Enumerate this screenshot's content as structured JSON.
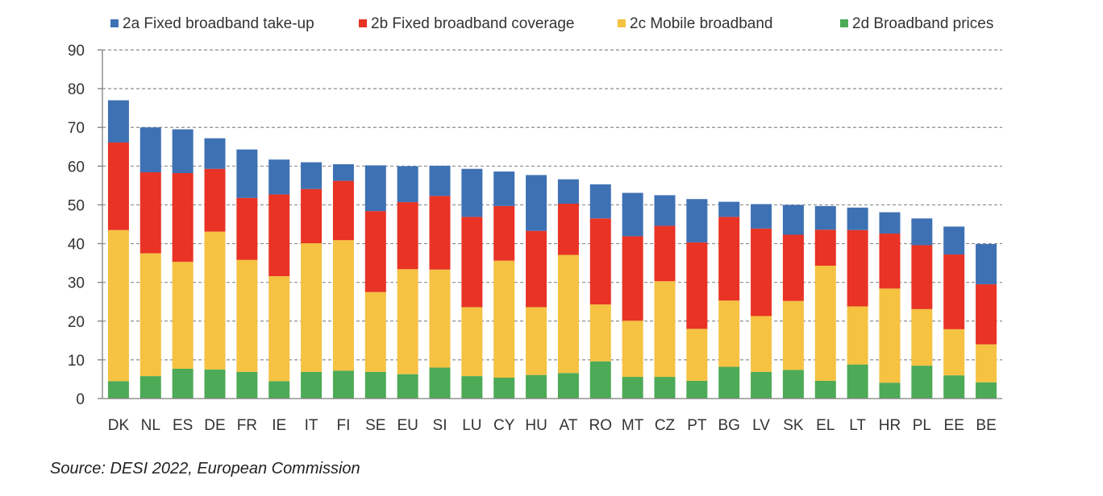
{
  "chart_data": {
    "type": "bar",
    "stacked": true,
    "title": "",
    "xlabel": "",
    "ylabel": "",
    "ylim": [
      0,
      90
    ],
    "yticks": [
      0,
      10,
      20,
      30,
      40,
      50,
      60,
      70,
      80,
      90
    ],
    "grid": true,
    "legend_position": "top",
    "categories": [
      "DK",
      "NL",
      "ES",
      "DE",
      "FR",
      "IE",
      "IT",
      "FI",
      "SE",
      "EU",
      "SI",
      "LU",
      "CY",
      "HU",
      "AT",
      "RO",
      "MT",
      "CZ",
      "PT",
      "BG",
      "LV",
      "SK",
      "EL",
      "LT",
      "HR",
      "PL",
      "EE",
      "BE"
    ],
    "series": [
      {
        "name": "2d Broadband prices",
        "color": "#4daa57",
        "values": [
          4.5,
          5.8,
          7.7,
          7.5,
          6.9,
          4.5,
          6.9,
          7.2,
          6.9,
          6.3,
          8.0,
          5.8,
          5.4,
          6.1,
          6.6,
          9.6,
          5.6,
          5.6,
          4.6,
          8.2,
          6.9,
          7.4,
          4.6,
          8.8,
          4.1,
          8.5,
          6.0,
          4.2
        ]
      },
      {
        "name": "2c Mobile broadband",
        "color": "#f5c242",
        "values": [
          39.0,
          31.7,
          27.6,
          35.6,
          28.9,
          27.1,
          33.2,
          33.7,
          20.6,
          27.1,
          25.3,
          17.8,
          30.2,
          17.5,
          30.5,
          14.7,
          14.5,
          24.7,
          13.4,
          17.1,
          14.4,
          17.8,
          29.7,
          15.0,
          24.3,
          14.6,
          11.9,
          9.8
        ]
      },
      {
        "name": "2b Fixed broadband coverage",
        "color": "#e83325",
        "values": [
          22.6,
          20.9,
          22.9,
          16.2,
          16.0,
          21.1,
          14.0,
          15.3,
          20.9,
          17.3,
          19.0,
          23.3,
          14.1,
          19.7,
          13.2,
          22.2,
          21.8,
          14.3,
          22.3,
          21.6,
          22.6,
          17.1,
          9.3,
          19.7,
          14.2,
          16.5,
          19.3,
          15.5
        ]
      },
      {
        "name": "2a Fixed broadband take-up",
        "color": "#3e71b4",
        "values": [
          10.9,
          11.6,
          11.3,
          7.9,
          12.5,
          9.0,
          6.9,
          4.3,
          11.8,
          9.3,
          7.8,
          12.4,
          8.9,
          14.4,
          6.3,
          8.8,
          11.2,
          7.9,
          11.2,
          3.9,
          6.3,
          7.7,
          6.1,
          5.8,
          5.5,
          6.9,
          7.2,
          10.4
        ]
      }
    ],
    "legend_order": [
      "2a Fixed broadband take-up",
      "2b Fixed broadband coverage",
      "2c Mobile broadband",
      "2d Broadband prices"
    ]
  },
  "source_note": "Source: DESI 2022, European Commission"
}
